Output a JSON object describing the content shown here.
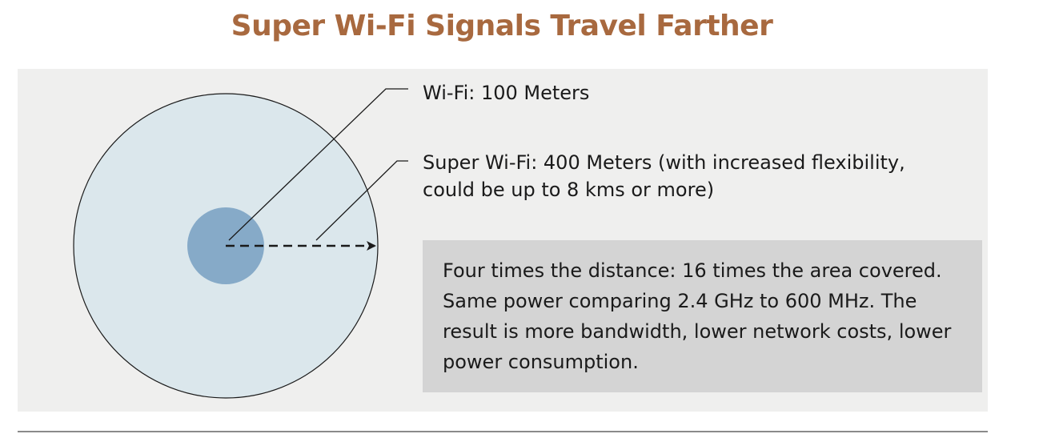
{
  "title": "Super Wi-Fi Signals Travel Farther",
  "labels": {
    "wifi": "Wi-Fi: 100 Meters",
    "super_wifi_line1": "Super Wi-Fi: 400 Meters (with increased flexibility,",
    "super_wifi_line2": "could be up to 8 kms or more)"
  },
  "callout": {
    "text": "Four times the distance: 16 times the area covered. Same power comparing 2.4 GHz to 600 MHz. The result is more bandwidth, lower network costs, lower power consumption."
  },
  "colors": {
    "title": "#a8693f",
    "panel_background": "#efefee",
    "outer_circle_fill": "#dbe7ec",
    "inner_circle_fill": "#86aac8",
    "callout_background": "#d4d4d4"
  }
}
